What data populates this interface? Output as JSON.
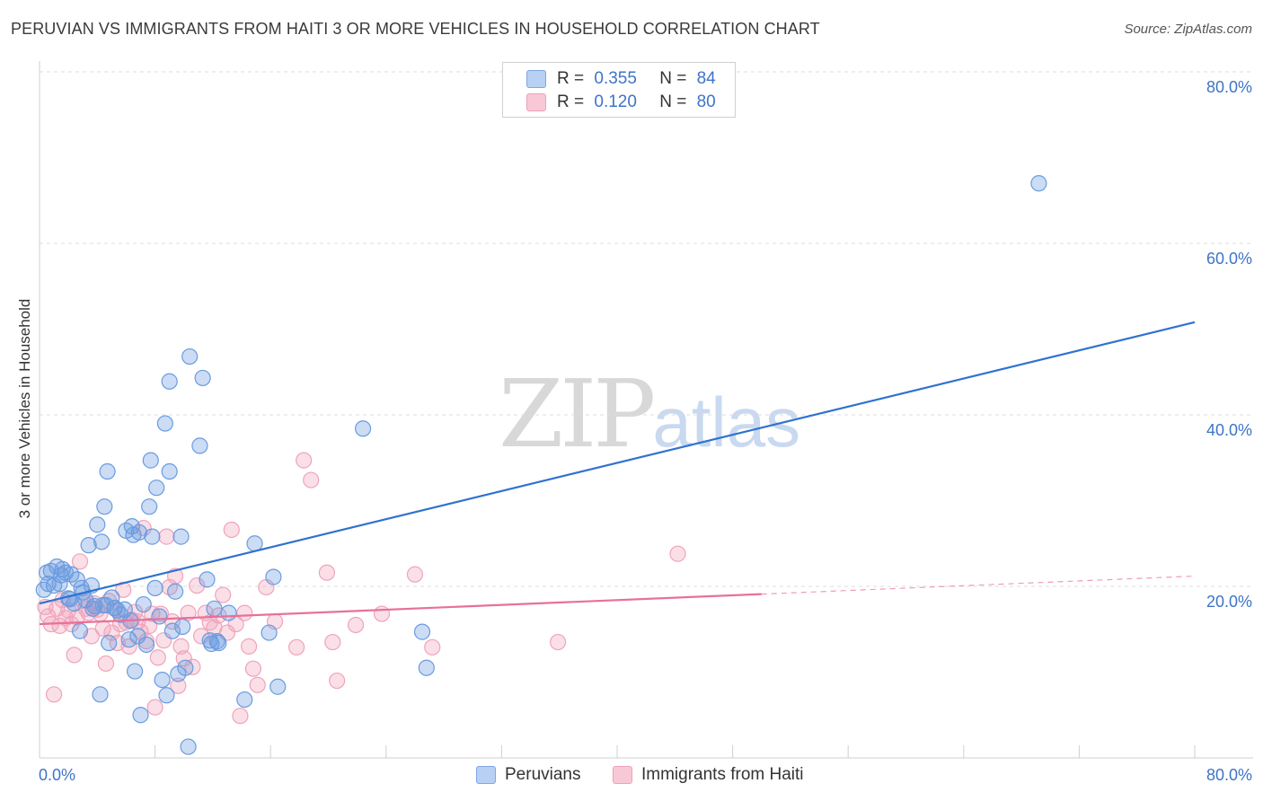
{
  "title": "PERUVIAN VS IMMIGRANTS FROM HAITI 3 OR MORE VEHICLES IN HOUSEHOLD CORRELATION CHART",
  "source": "Source: ZipAtlas.com",
  "watermark": {
    "zip": "ZIP",
    "atlas": "atlas"
  },
  "colors": {
    "blue": "#6a9be0",
    "blue_line": "#2f72cf",
    "pink": "#f0a3bb",
    "pink_line": "#e8709a",
    "tick_text": "#3d74c9"
  },
  "legend": {
    "rows": [
      {
        "r_label": "R =",
        "r_value": "0.355",
        "n_label": "N =",
        "n_value": "84"
      },
      {
        "r_label": "R =",
        "r_value": "0.120",
        "n_label": "N =",
        "n_value": "80"
      }
    ]
  },
  "bottom_legend": {
    "series1": "Peruvians",
    "series2": "Immigrants from Haiti"
  },
  "chart_data": {
    "type": "scatter",
    "title": "PERUVIAN VS IMMIGRANTS FROM HAITI 3 OR MORE VEHICLES IN HOUSEHOLD CORRELATION CHART",
    "xlabel": "",
    "ylabel": "3 or more Vehicles in Household",
    "xlim": [
      0,
      80
    ],
    "ylim": [
      0,
      80
    ],
    "x_ticks": [
      "0.0%",
      "80.0%"
    ],
    "y_ticks": [
      "20.0%",
      "40.0%",
      "60.0%",
      "80.0%"
    ],
    "series": [
      {
        "name": "Peruvians",
        "R": 0.355,
        "N": 84,
        "trend": {
          "x": [
            0,
            80
          ],
          "y": [
            18.0,
            50.8
          ]
        },
        "points": [
          [
            0.3,
            19.6
          ],
          [
            0.5,
            21.6
          ],
          [
            0.6,
            20.3
          ],
          [
            0.8,
            21.8
          ],
          [
            1.0,
            20.1
          ],
          [
            1.2,
            22.3
          ],
          [
            1.4,
            20.3
          ],
          [
            1.6,
            22.0
          ],
          [
            1.8,
            21.6
          ],
          [
            2.0,
            18.6
          ],
          [
            2.2,
            21.4
          ],
          [
            2.4,
            18.0
          ],
          [
            2.6,
            20.8
          ],
          [
            2.8,
            14.8
          ],
          [
            3.0,
            19.3
          ],
          [
            3.2,
            18.4
          ],
          [
            3.4,
            24.8
          ],
          [
            3.6,
            20.1
          ],
          [
            3.8,
            17.7
          ],
          [
            4.0,
            27.2
          ],
          [
            4.2,
            7.4
          ],
          [
            4.3,
            25.2
          ],
          [
            4.5,
            29.3
          ],
          [
            4.6,
            17.8
          ],
          [
            4.7,
            33.4
          ],
          [
            4.8,
            13.4
          ],
          [
            5.0,
            18.7
          ],
          [
            5.2,
            17.5
          ],
          [
            5.4,
            17.2
          ],
          [
            5.6,
            16.7
          ],
          [
            6.0,
            26.5
          ],
          [
            6.2,
            13.8
          ],
          [
            6.4,
            27.0
          ],
          [
            6.5,
            26.0
          ],
          [
            6.6,
            10.1
          ],
          [
            6.8,
            14.2
          ],
          [
            6.9,
            26.3
          ],
          [
            7.0,
            5.0
          ],
          [
            7.2,
            17.9
          ],
          [
            7.4,
            13.2
          ],
          [
            7.6,
            29.3
          ],
          [
            7.7,
            34.7
          ],
          [
            7.8,
            25.8
          ],
          [
            8.0,
            19.8
          ],
          [
            8.1,
            31.5
          ],
          [
            8.3,
            16.5
          ],
          [
            8.5,
            9.1
          ],
          [
            8.7,
            39.0
          ],
          [
            8.8,
            7.3
          ],
          [
            9.0,
            43.9
          ],
          [
            9.0,
            33.4
          ],
          [
            9.4,
            19.4
          ],
          [
            9.6,
            9.8
          ],
          [
            9.8,
            25.8
          ],
          [
            9.9,
            15.3
          ],
          [
            10.1,
            10.5
          ],
          [
            10.3,
            1.3
          ],
          [
            10.4,
            46.8
          ],
          [
            11.1,
            36.4
          ],
          [
            11.3,
            44.3
          ],
          [
            11.6,
            20.8
          ],
          [
            11.9,
            13.3
          ],
          [
            12.1,
            17.4
          ],
          [
            12.3,
            13.6
          ],
          [
            12.4,
            13.4
          ],
          [
            13.1,
            16.9
          ],
          [
            14.2,
            6.8
          ],
          [
            14.9,
            25.0
          ],
          [
            15.9,
            14.6
          ],
          [
            16.2,
            21.1
          ],
          [
            16.5,
            8.3
          ],
          [
            22.4,
            38.4
          ],
          [
            26.5,
            14.7
          ],
          [
            26.8,
            10.5
          ],
          [
            69.2,
            67.0
          ],
          [
            2.1,
            18.5
          ],
          [
            3.7,
            17.4
          ],
          [
            5.9,
            17.3
          ],
          [
            1.5,
            21.3
          ],
          [
            2.9,
            19.8
          ],
          [
            4.4,
            17.8
          ],
          [
            6.3,
            16.0
          ],
          [
            9.2,
            14.8
          ],
          [
            11.8,
            13.7
          ]
        ]
      },
      {
        "name": "Immigrants from Haiti",
        "R": 0.12,
        "N": 80,
        "trend": {
          "x": [
            0,
            50.0
          ],
          "y": [
            15.6,
            19.1
          ]
        },
        "trend_dashed": {
          "x": [
            50.0,
            80
          ],
          "y": [
            19.1,
            21.2
          ]
        },
        "points": [
          [
            0.4,
            17.6
          ],
          [
            0.6,
            16.5
          ],
          [
            0.8,
            15.6
          ],
          [
            1.0,
            7.4
          ],
          [
            1.2,
            17.4
          ],
          [
            1.4,
            15.4
          ],
          [
            1.6,
            18.4
          ],
          [
            1.8,
            16.3
          ],
          [
            2.0,
            17.2
          ],
          [
            2.2,
            15.6
          ],
          [
            2.4,
            12.0
          ],
          [
            2.6,
            16.4
          ],
          [
            2.8,
            22.9
          ],
          [
            3.0,
            18.3
          ],
          [
            3.2,
            17.4
          ],
          [
            3.4,
            16.9
          ],
          [
            3.6,
            14.2
          ],
          [
            3.8,
            18.0
          ],
          [
            4.0,
            17.3
          ],
          [
            4.2,
            16.8
          ],
          [
            4.4,
            15.1
          ],
          [
            4.6,
            11.0
          ],
          [
            4.8,
            18.3
          ],
          [
            5.0,
            14.6
          ],
          [
            5.2,
            17.4
          ],
          [
            5.4,
            13.4
          ],
          [
            5.6,
            15.6
          ],
          [
            5.8,
            19.6
          ],
          [
            6.0,
            15.8
          ],
          [
            6.2,
            13.0
          ],
          [
            6.4,
            16.1
          ],
          [
            6.6,
            17.0
          ],
          [
            6.8,
            15.9
          ],
          [
            7.0,
            14.7
          ],
          [
            7.2,
            26.8
          ],
          [
            7.4,
            13.6
          ],
          [
            7.6,
            15.4
          ],
          [
            7.8,
            16.8
          ],
          [
            8.0,
            5.9
          ],
          [
            8.2,
            11.7
          ],
          [
            8.4,
            16.8
          ],
          [
            8.6,
            13.7
          ],
          [
            8.8,
            25.8
          ],
          [
            9.0,
            19.9
          ],
          [
            9.2,
            15.9
          ],
          [
            9.4,
            21.2
          ],
          [
            9.6,
            8.4
          ],
          [
            9.8,
            13.0
          ],
          [
            10.0,
            11.6
          ],
          [
            10.3,
            16.9
          ],
          [
            10.6,
            10.6
          ],
          [
            10.9,
            20.1
          ],
          [
            11.2,
            14.2
          ],
          [
            11.5,
            16.9
          ],
          [
            11.8,
            15.8
          ],
          [
            12.1,
            15.2
          ],
          [
            12.4,
            16.6
          ],
          [
            12.7,
            19.0
          ],
          [
            13.0,
            14.6
          ],
          [
            13.3,
            26.6
          ],
          [
            13.6,
            15.6
          ],
          [
            13.9,
            4.9
          ],
          [
            14.2,
            16.9
          ],
          [
            14.5,
            13.0
          ],
          [
            14.8,
            10.4
          ],
          [
            15.1,
            8.5
          ],
          [
            15.7,
            19.9
          ],
          [
            16.3,
            15.9
          ],
          [
            17.8,
            12.9
          ],
          [
            18.3,
            34.7
          ],
          [
            18.8,
            32.4
          ],
          [
            19.9,
            21.6
          ],
          [
            20.3,
            13.5
          ],
          [
            20.6,
            9.0
          ],
          [
            21.9,
            15.5
          ],
          [
            23.7,
            16.8
          ],
          [
            26.0,
            21.4
          ],
          [
            27.2,
            12.9
          ],
          [
            35.9,
            13.5
          ],
          [
            44.2,
            23.8
          ]
        ]
      }
    ]
  }
}
